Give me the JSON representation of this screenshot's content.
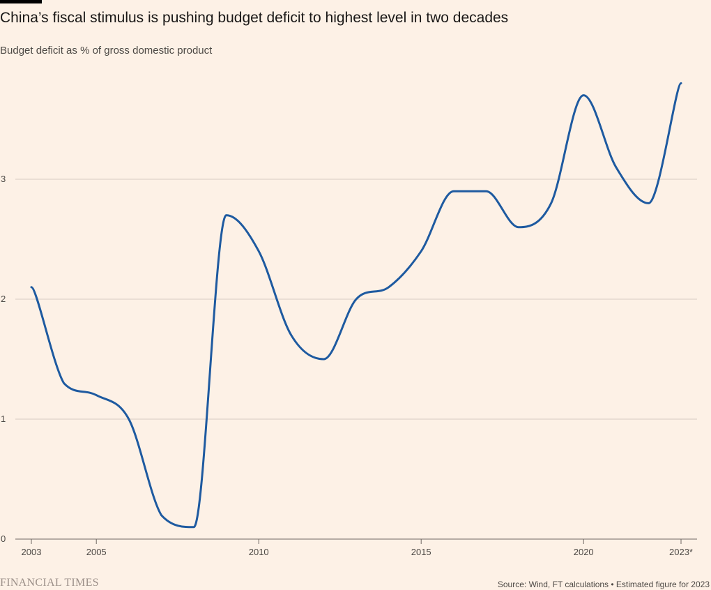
{
  "header": {
    "title": "China’s fiscal stimulus is pushing budget deficit to highest level in two decades",
    "subtitle": "Budget deficit as % of gross domestic product"
  },
  "footer": {
    "brand": "FINANCIAL TIMES",
    "source": "Source: Wind, FT calculations • Estimated figure for 2023"
  },
  "colors": {
    "background": "#fdf1e6",
    "line": "#1e5aa0",
    "grid": "#d6cbc2",
    "axis": "#6f6863"
  },
  "chart_data": {
    "type": "line",
    "title": "China’s fiscal stimulus is pushing budget deficit to highest level in two decades",
    "subtitle": "Budget deficit as % of gross domestic product",
    "xlabel": "",
    "ylabel": "",
    "x": [
      2003,
      2004,
      2005,
      2006,
      2007,
      2008,
      2009,
      2010,
      2011,
      2012,
      2013,
      2014,
      2015,
      2016,
      2017,
      2018,
      2019,
      2020,
      2021,
      2022,
      2023
    ],
    "series": [
      {
        "values": [
          2.1,
          1.3,
          1.2,
          1.0,
          0.2,
          0.1,
          2.7,
          2.4,
          1.7,
          1.5,
          2.0,
          2.1,
          2.4,
          2.9,
          2.9,
          2.6,
          2.8,
          3.7,
          3.1,
          2.8,
          3.8
        ]
      }
    ],
    "xlim": [
      2003,
      2023
    ],
    "ylim": [
      0,
      3.8
    ],
    "x_ticks": [
      2003,
      2005,
      2010,
      2015,
      2020,
      2023
    ],
    "x_tick_labels": [
      "2003",
      "2005",
      "2010",
      "2015",
      "2020",
      "2023*"
    ],
    "y_ticks": [
      0,
      1,
      2,
      3
    ],
    "y_tick_labels": [
      "0",
      "1",
      "2",
      "3"
    ],
    "grid": "horizontal",
    "legend": "none"
  }
}
